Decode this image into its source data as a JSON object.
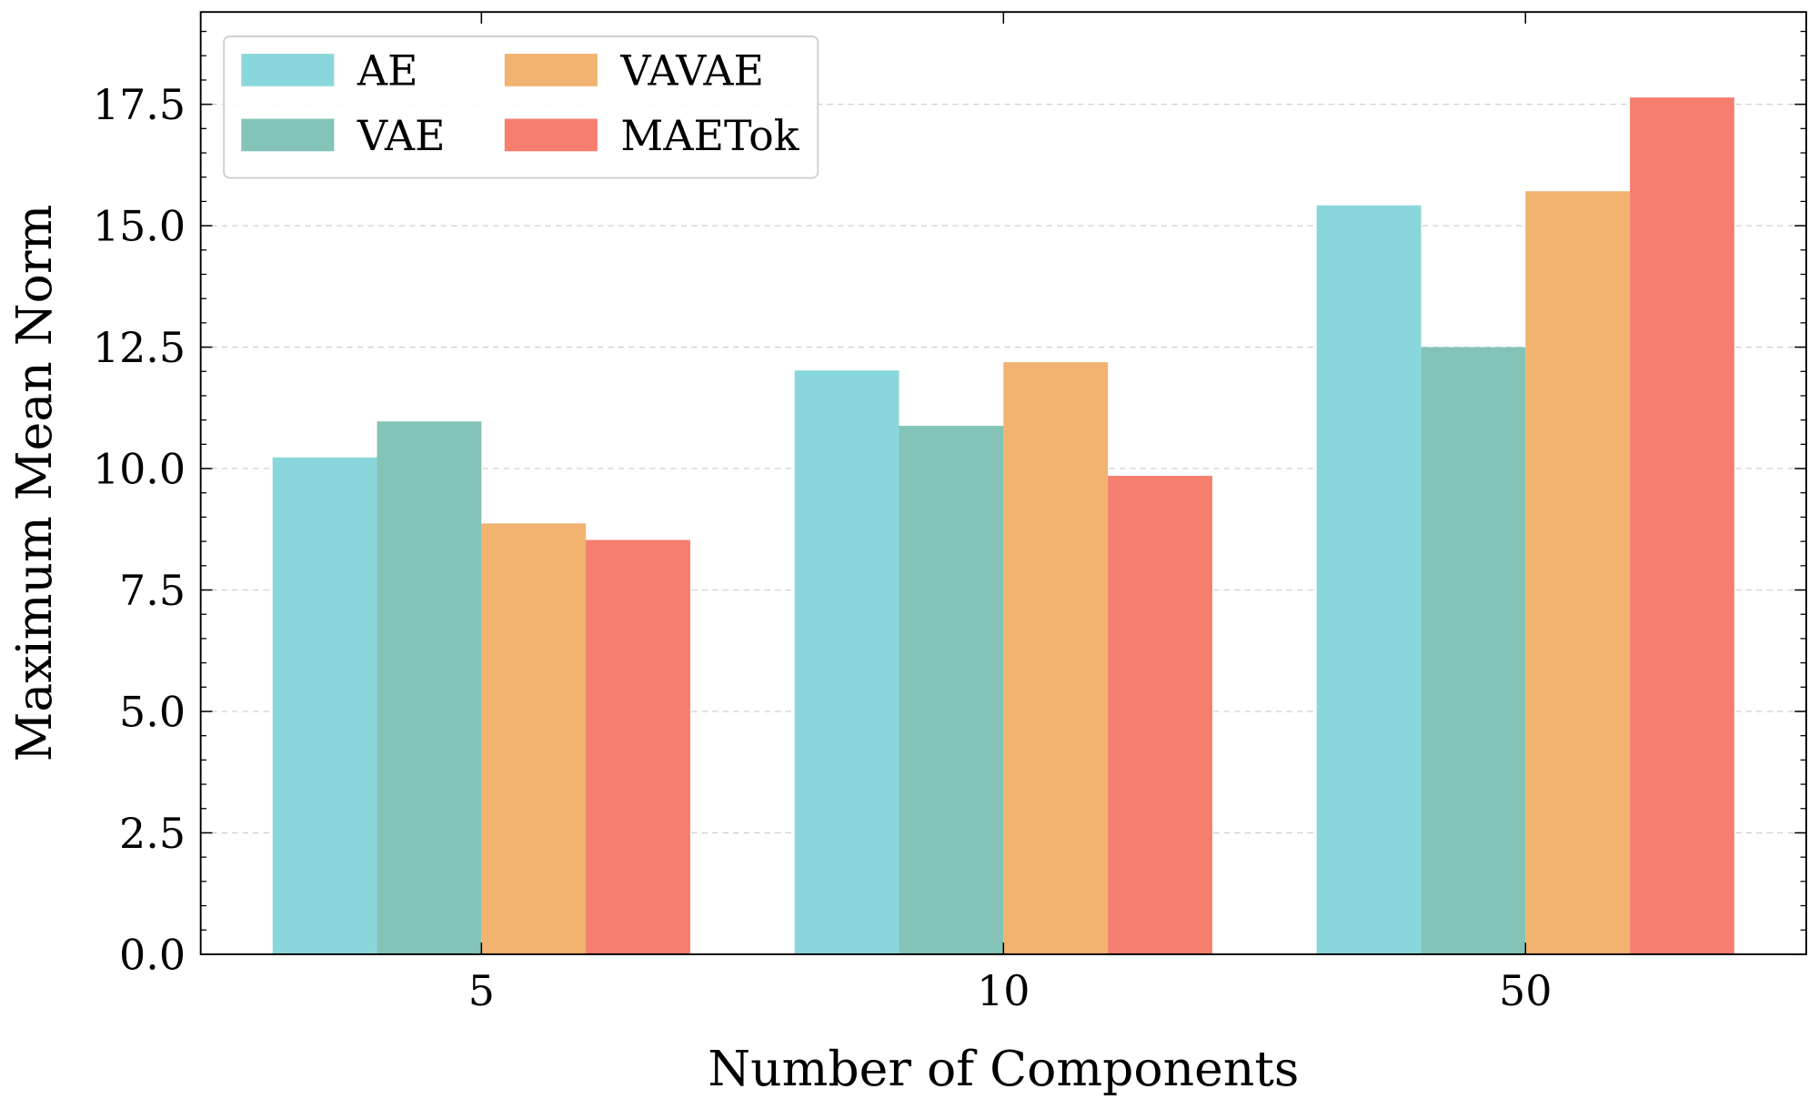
{
  "chart_data": {
    "type": "bar",
    "title": "",
    "xlabel": "Number of Components",
    "ylabel": "Maximum Mean Norm",
    "categories": [
      "5",
      "10",
      "50"
    ],
    "ylim": [
      0,
      19.4
    ],
    "yticks": [
      "0.0",
      "2.5",
      "5.0",
      "7.5",
      "10.0",
      "12.5",
      "15.0",
      "17.5"
    ],
    "grid": "horizontal dashed",
    "legend_position": "top-left",
    "series": [
      {
        "name": "AE",
        "color": "#8AD7DB",
        "values": [
          10.23,
          12.02,
          15.42
        ]
      },
      {
        "name": "VAE",
        "color": "#84C3B7",
        "values": [
          10.97,
          10.88,
          12.5
        ]
      },
      {
        "name": "VAVAE",
        "color": "#F1B36F",
        "values": [
          8.87,
          12.19,
          15.71
        ]
      },
      {
        "name": "MAETok",
        "color": "#F57E6F",
        "values": [
          8.53,
          9.85,
          17.64
        ]
      }
    ]
  }
}
